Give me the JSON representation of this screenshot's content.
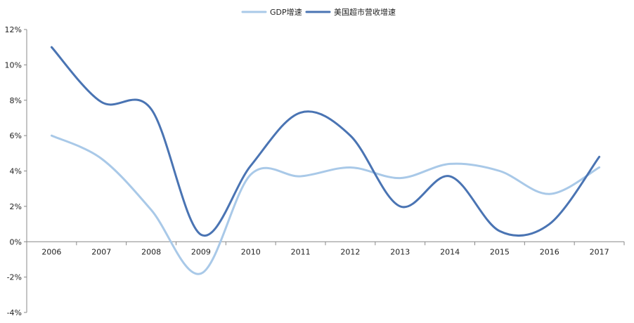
{
  "chart_data": {
    "type": "line",
    "title": "",
    "xlabel": "",
    "ylabel": "",
    "categories": [
      "2006",
      "2007",
      "2008",
      "2009",
      "2010",
      "2011",
      "2012",
      "2013",
      "2014",
      "2015",
      "2016",
      "2017"
    ],
    "series": [
      {
        "name": "GDP增速",
        "color": "#a9c9e8",
        "values": [
          6.0,
          4.7,
          1.8,
          -1.8,
          3.8,
          3.7,
          4.2,
          3.6,
          4.4,
          4.0,
          2.7,
          4.2
        ]
      },
      {
        "name": "美国超市营收增速",
        "color": "#4a74b3",
        "values": [
          11.0,
          7.9,
          7.5,
          0.4,
          4.3,
          7.3,
          6.0,
          2.0,
          3.7,
          0.6,
          1.0,
          4.8
        ]
      }
    ],
    "ylim": [
      -4,
      12
    ],
    "yticks": [
      -4,
      -2,
      0,
      2,
      4,
      6,
      8,
      10,
      12
    ],
    "ytick_labels": [
      "-4%",
      "-2%",
      "0%",
      "2%",
      "4%",
      "6%",
      "8%",
      "10%",
      "12%"
    ],
    "grid": false,
    "legend_position": "top-center",
    "smooth": true
  }
}
